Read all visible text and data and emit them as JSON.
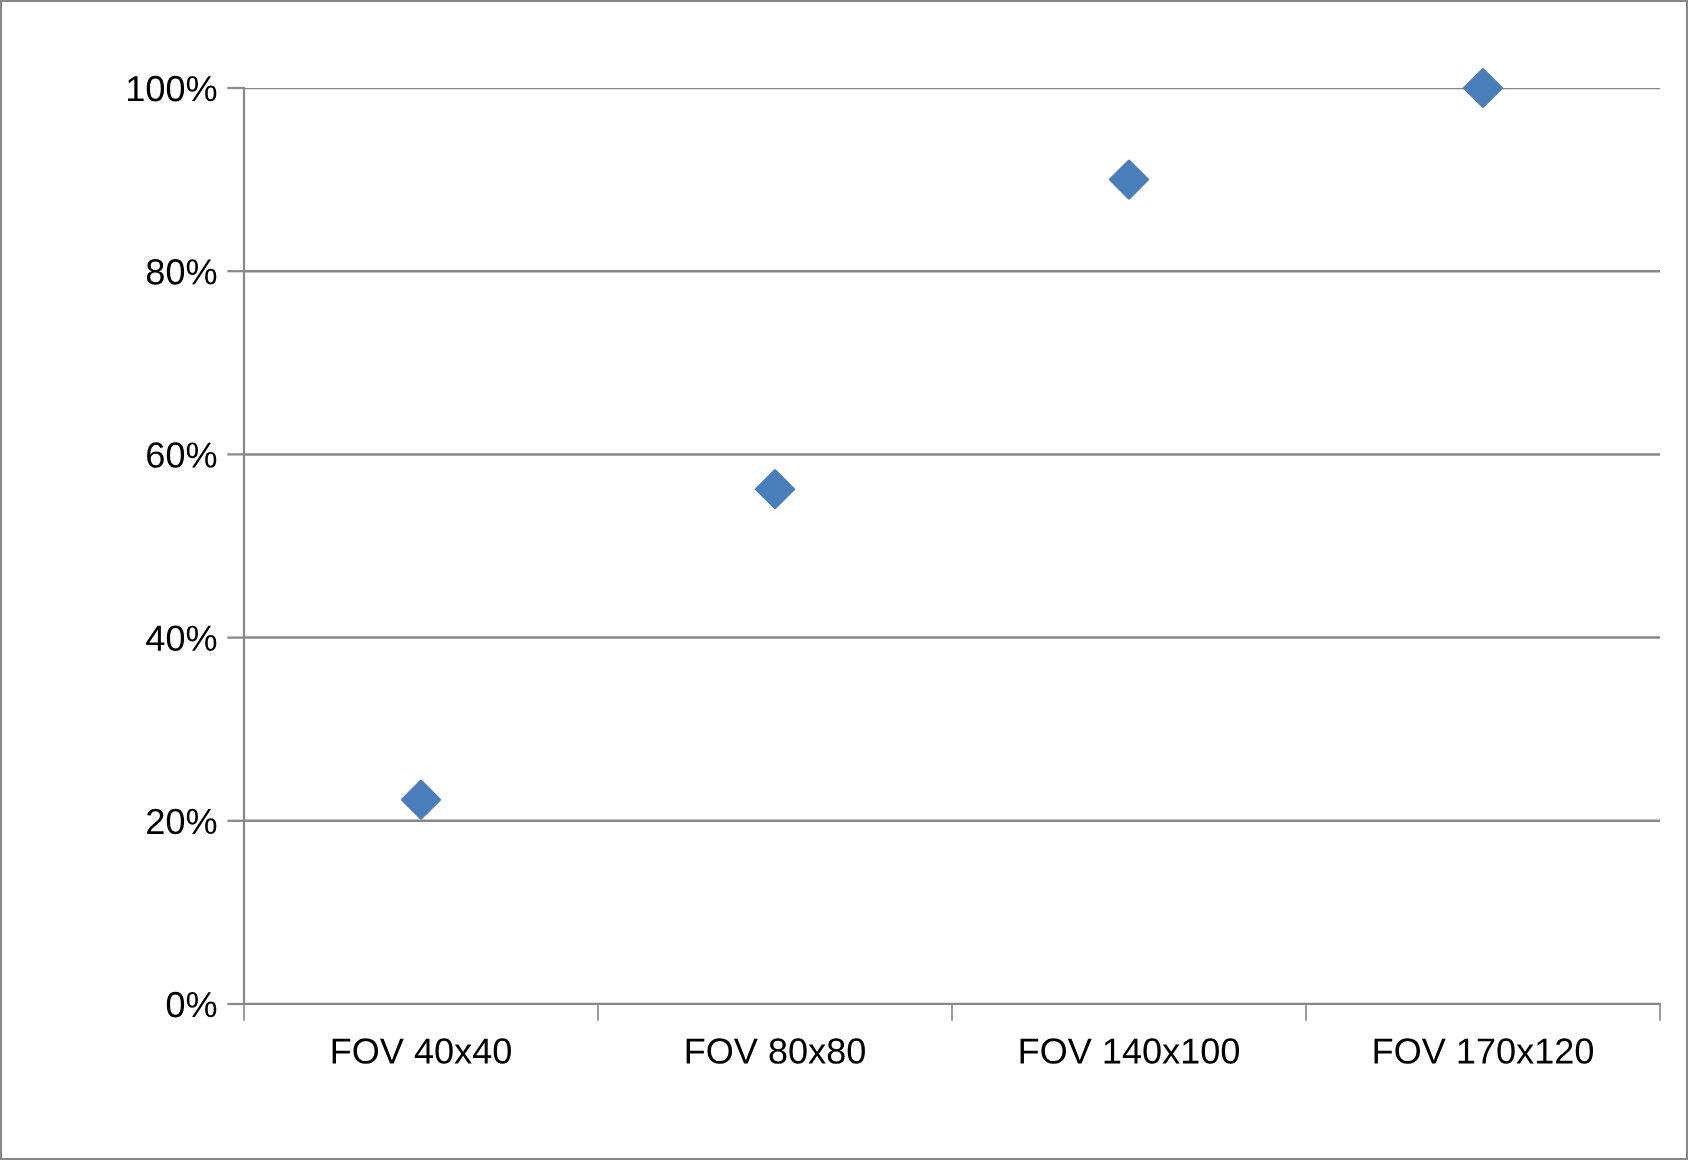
{
  "chart_data": {
    "type": "scatter",
    "categories": [
      "FOV 40x40",
      "FOV 80x80",
      "FOV 140x100",
      "FOV 170x120"
    ],
    "series": [
      {
        "color": "#4a7ebb",
        "values": [
          22.3,
          56.2,
          90,
          100
        ]
      }
    ],
    "ylim": [
      0,
      100
    ],
    "yticks": [
      {
        "value": 0,
        "label": "0%"
      },
      {
        "value": 20,
        "label": "20%"
      },
      {
        "value": 40,
        "label": "40%"
      },
      {
        "value": 60,
        "label": "60%"
      },
      {
        "value": 80,
        "label": "80%"
      },
      {
        "value": 100,
        "label": "100%"
      }
    ],
    "grid": "y",
    "marker": "diamond"
  }
}
